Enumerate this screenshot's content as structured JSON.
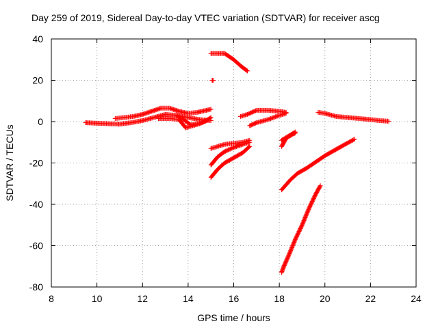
{
  "chart_data": {
    "type": "scatter",
    "title": "Day 259 of 2019, Sidereal Day-to-day VTEC variation (SDTVAR) for receiver ascg",
    "xlabel": "GPS time / hours",
    "ylabel": "SDTVAR / TECUs",
    "xlim": [
      8,
      24
    ],
    "ylim": [
      -80,
      40
    ],
    "xticks": [
      "8",
      "10",
      "12",
      "14",
      "16",
      "18",
      "20",
      "22",
      "24"
    ],
    "yticks": [
      "40",
      "20",
      "0",
      "-20",
      "-40",
      "-60",
      "-80"
    ],
    "grid": true,
    "marker": "+",
    "color": "#ff0000",
    "tracks": [
      [
        [
          9.5,
          -0.5
        ],
        [
          10.0,
          -0.8
        ],
        [
          10.5,
          -1.0
        ],
        [
          11.0,
          -1.2
        ],
        [
          11.5,
          -0.5
        ],
        [
          12.0,
          0.5
        ],
        [
          12.5,
          2.0
        ],
        [
          13.0,
          3.5
        ],
        [
          13.5,
          3.0
        ],
        [
          14.0,
          2.0
        ],
        [
          14.5,
          1.0
        ],
        [
          15.0,
          0.5
        ]
      ],
      [
        [
          10.8,
          1.5
        ],
        [
          11.2,
          2.0
        ],
        [
          11.6,
          2.5
        ],
        [
          12.0,
          3.5
        ],
        [
          12.4,
          5.0
        ],
        [
          12.8,
          6.5
        ],
        [
          13.2,
          6.5
        ],
        [
          13.6,
          5.0
        ],
        [
          14.0,
          4.0
        ],
        [
          14.4,
          4.5
        ],
        [
          14.8,
          5.5
        ],
        [
          15.0,
          6.0
        ]
      ],
      [
        [
          12.7,
          1.5
        ],
        [
          13.2,
          1.5
        ],
        [
          13.6,
          1.0
        ],
        [
          13.9,
          -3.0
        ],
        [
          14.2,
          -2.0
        ],
        [
          14.5,
          -1.0
        ],
        [
          14.8,
          0.5
        ],
        [
          15.0,
          2.0
        ]
      ],
      [
        [
          13.5,
          3.0
        ],
        [
          13.8,
          1.0
        ],
        [
          14.1,
          -1.5
        ],
        [
          14.5,
          -1.0
        ],
        [
          14.9,
          1.0
        ]
      ],
      [
        [
          15.0,
          33.0
        ],
        [
          15.6,
          33.0
        ],
        [
          16.0,
          30.0
        ],
        [
          16.3,
          27.0
        ],
        [
          16.6,
          24.5
        ]
      ],
      [
        [
          15.05,
          20.0
        ],
        [
          15.1,
          20.0
        ]
      ],
      [
        [
          15.0,
          -13.0
        ],
        [
          15.3,
          -12.0
        ],
        [
          15.6,
          -11.0
        ],
        [
          16.0,
          -10.5
        ],
        [
          16.4,
          -10.0
        ],
        [
          16.7,
          -9.0
        ]
      ],
      [
        [
          15.0,
          -21.0
        ],
        [
          15.3,
          -17.0
        ],
        [
          15.6,
          -14.5
        ],
        [
          16.0,
          -12.5
        ],
        [
          16.4,
          -11.0
        ],
        [
          16.7,
          -10.0
        ]
      ],
      [
        [
          15.0,
          -27.0
        ],
        [
          15.3,
          -23.0
        ],
        [
          15.6,
          -20.0
        ],
        [
          16.0,
          -17.5
        ],
        [
          16.4,
          -15.0
        ],
        [
          16.7,
          -12.0
        ]
      ],
      [
        [
          16.3,
          2.5
        ],
        [
          16.6,
          3.5
        ],
        [
          17.0,
          5.5
        ],
        [
          17.5,
          5.5
        ],
        [
          18.0,
          5.0
        ],
        [
          18.3,
          4.5
        ]
      ],
      [
        [
          16.7,
          -2.0
        ],
        [
          17.0,
          -0.5
        ],
        [
          17.5,
          1.0
        ],
        [
          18.0,
          3.0
        ],
        [
          18.3,
          4.0
        ]
      ],
      [
        [
          18.1,
          -12.0
        ],
        [
          18.3,
          -8.0
        ],
        [
          18.6,
          -6.0
        ],
        [
          18.7,
          -5.5
        ]
      ],
      [
        [
          18.1,
          -9.0
        ],
        [
          18.4,
          -7.0
        ],
        [
          18.7,
          -5.0
        ]
      ],
      [
        [
          18.1,
          -33.0
        ],
        [
          18.5,
          -28.0
        ],
        [
          18.8,
          -25.0
        ],
        [
          19.2,
          -22.5
        ],
        [
          19.6,
          -19.5
        ],
        [
          20.0,
          -16.5
        ],
        [
          20.4,
          -14.0
        ],
        [
          20.8,
          -11.5
        ],
        [
          21.3,
          -8.5
        ]
      ],
      [
        [
          18.1,
          -73.0
        ],
        [
          18.2,
          -70.0
        ],
        [
          18.4,
          -65.0
        ],
        [
          18.7,
          -57.0
        ],
        [
          19.0,
          -50.0
        ],
        [
          19.3,
          -42.0
        ],
        [
          19.6,
          -35.0
        ],
        [
          19.8,
          -31.0
        ]
      ],
      [
        [
          19.7,
          4.5
        ],
        [
          20.0,
          4.0
        ],
        [
          20.5,
          2.5
        ],
        [
          21.0,
          2.0
        ],
        [
          21.5,
          1.5
        ],
        [
          22.0,
          1.0
        ],
        [
          22.4,
          0.5
        ],
        [
          22.8,
          0.2
        ]
      ]
    ]
  }
}
